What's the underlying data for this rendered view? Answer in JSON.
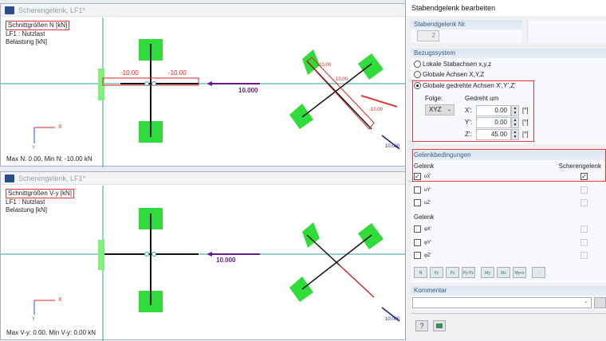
{
  "top_view": {
    "window_title": "Scherengelenk, LF1*",
    "heading": "Schnittgrößen N [kN]",
    "load_case": "LF1 : Nutzlast",
    "load_label": "Belastung [kN]",
    "labels": [
      "-10.00",
      "-10.00",
      "10.000",
      "10.000",
      "-10.00",
      "-10.00",
      "-10.00"
    ],
    "footer": "Max N: 0.00, Min N: -10.00 kN"
  },
  "bottom_view": {
    "window_title": "Scherengelenk, LF1*",
    "heading": "Schnittgrößen V-y [kN]",
    "load_case": "LF1 : Nutzlast",
    "load_label": "Belastung [kN]",
    "labels": [
      "10.000",
      "10.000"
    ],
    "footer": "Max V-y: 0.00, Min V-y: 0.00 kN"
  },
  "axes": {
    "x": "X",
    "y": "Y"
  },
  "dialog": {
    "title": "Stabendgelenk bearbeiten",
    "nr_header": "Stabendgelenk Nr.",
    "nr_value": "2",
    "bezug_header": "Bezugssystem",
    "radios": [
      {
        "label": "Lokale Stabachsen x,y,z",
        "selected": false
      },
      {
        "label": "Globale Achsen X,Y,Z",
        "selected": false
      },
      {
        "label": "Globale gedrehte Achsen X',Y',Z'",
        "selected": true
      }
    ],
    "folge_label": "Folge:",
    "folge_value": "XYZ",
    "gedreht_label": "Gedreht um",
    "rotations": [
      {
        "axis": "X':",
        "value": "0.00",
        "unit": "[°]"
      },
      {
        "axis": "Y':",
        "value": "0.00",
        "unit": "[°]"
      },
      {
        "axis": "Z':",
        "value": "45.00",
        "unit": "[°]"
      }
    ],
    "gelenk_header": "Gelenkbedingungen",
    "gelenk_label": "Gelenk",
    "scheren_label": "Scherengelenk",
    "translations": [
      {
        "label": "uX'",
        "checked": true,
        "scheren": true
      },
      {
        "label": "uY'",
        "checked": false,
        "scheren": false
      },
      {
        "label": "uZ'",
        "checked": false,
        "scheren": false
      }
    ],
    "gelenk_label2": "Gelenk",
    "rotations_cb": [
      {
        "label": "φX'",
        "checked": false,
        "scheren": false
      },
      {
        "label": "φY'",
        "checked": false,
        "scheren": false
      },
      {
        "label": "φZ'",
        "checked": false,
        "scheren": false
      }
    ],
    "toolbar": [
      "N",
      "Py",
      "Pz",
      "Py-Pz",
      "My",
      "Mz",
      "My+z",
      "-"
    ],
    "kommentar_header": "Kommentar",
    "kommentar_value": ""
  },
  "colors": {
    "highlight": "#e03a3a",
    "support": "#3ddc3d",
    "axis": "#2aa198",
    "load": "#6b1a8a",
    "diagram": "#e02020"
  }
}
